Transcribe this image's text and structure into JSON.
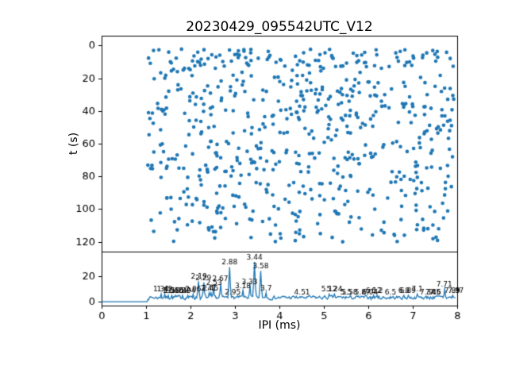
{
  "title": "20230429_095542UTC_V12",
  "colors": {
    "accent": "#1f77b4",
    "axis": "#000000",
    "text": "#000000",
    "background": "#ffffff"
  },
  "chart_data": [
    {
      "type": "scatter",
      "panel": "top",
      "title": "20230429_095542UTC_V12",
      "xlabel": "",
      "ylabel": "t (s)",
      "xlim": [
        0,
        8
      ],
      "ylim": [
        -6,
        126
      ],
      "y_inverted": true,
      "yticks": [
        0,
        20,
        40,
        60,
        80,
        100,
        120
      ],
      "grid": false,
      "marker_color": "#1f77b4",
      "marker_radius_px": 2.3,
      "points_estimated": true,
      "n_points": 650,
      "x_range": [
        1.03,
        7.95
      ],
      "seed": 42,
      "bands": [
        {
          "y_from": 2,
          "y_to": 14,
          "n": 110
        },
        {
          "y_from": 14,
          "y_to": 30,
          "n": 80
        },
        {
          "y_from": 30,
          "y_to": 46,
          "n": 110
        },
        {
          "y_from": 46,
          "y_to": 58,
          "n": 55
        },
        {
          "y_from": 58,
          "y_to": 76,
          "n": 105
        },
        {
          "y_from": 76,
          "y_to": 92,
          "n": 75
        },
        {
          "y_from": 92,
          "y_to": 120,
          "n": 115
        }
      ]
    },
    {
      "type": "line",
      "panel": "bottom",
      "xlabel": "IPI (ms)",
      "ylabel": "",
      "xlim": [
        0,
        8
      ],
      "ylim": [
        -3,
        39
      ],
      "xticks": [
        0,
        1,
        2,
        3,
        4,
        5,
        6,
        7,
        8
      ],
      "yticks": [
        0,
        20
      ],
      "grid": false,
      "line_color": "#1f77b4",
      "flat_zero_until_x": 1.02,
      "noise": {
        "min": 1.0,
        "max": 5.5,
        "step": 0.02,
        "seed": 7,
        "smooth": 0.55
      },
      "peaks": [
        {
          "x": 1.34,
          "y": 6,
          "label": "1.34"
        },
        {
          "x": 1.42,
          "y": 6,
          "label": "1.42"
        },
        {
          "x": 1.5,
          "y": 5,
          "label": "1.5"
        },
        {
          "x": 1.58,
          "y": 5,
          "label": "1.58"
        },
        {
          "x": 1.66,
          "y": 5,
          "label": "1.66"
        },
        {
          "x": 1.74,
          "y": 5,
          "label": "1.74"
        },
        {
          "x": 1.82,
          "y": 5,
          "label": "1.82"
        },
        {
          "x": 1.94,
          "y": 5,
          "label": "1.94"
        },
        {
          "x": 2.06,
          "y": 6,
          "label": "2.06"
        },
        {
          "x": 2.19,
          "y": 16,
          "label": "2.19"
        },
        {
          "x": 2.29,
          "y": 15,
          "label": "2.29"
        },
        {
          "x": 2.41,
          "y": 7,
          "label": "2.41"
        },
        {
          "x": 2.45,
          "y": 7,
          "label": "2.45"
        },
        {
          "x": 2.53,
          "y": 11,
          "label": "2.53"
        },
        {
          "x": 2.67,
          "y": 14,
          "label": "2.67"
        },
        {
          "x": 2.88,
          "y": 27,
          "label": "2.88"
        },
        {
          "x": 2.95,
          "y": 4,
          "label": "2.95"
        },
        {
          "x": 3.18,
          "y": 9,
          "label": "3.18"
        },
        {
          "x": 3.33,
          "y": 12,
          "label": "3.33"
        },
        {
          "x": 3.44,
          "y": 31,
          "label": "3.44"
        },
        {
          "x": 3.58,
          "y": 24,
          "label": "3.58"
        },
        {
          "x": 3.7,
          "y": 7,
          "label": "3.7"
        },
        {
          "x": 4.51,
          "y": 4,
          "label": "4.51"
        },
        {
          "x": 5.12,
          "y": 6,
          "label": "5.12"
        },
        {
          "x": 5.24,
          "y": 6,
          "label": "5.24"
        },
        {
          "x": 5.5,
          "y": 4,
          "label": "5.5"
        },
        {
          "x": 5.58,
          "y": 4,
          "label": "5.58"
        },
        {
          "x": 5.87,
          "y": 4,
          "label": "5.87"
        },
        {
          "x": 6.04,
          "y": 4,
          "label": "6.04"
        },
        {
          "x": 6.12,
          "y": 5,
          "label": "6.12"
        },
        {
          "x": 6.2,
          "y": 5,
          "label": "6.2"
        },
        {
          "x": 6.5,
          "y": 4,
          "label": "6.5"
        },
        {
          "x": 6.8,
          "y": 5,
          "label": "6.8"
        },
        {
          "x": 6.89,
          "y": 5,
          "label": "6.89"
        },
        {
          "x": 7.1,
          "y": 6,
          "label": "7.1"
        },
        {
          "x": 7.34,
          "y": 4,
          "label": "7.34"
        },
        {
          "x": 7.46,
          "y": 4,
          "label": "7.46"
        },
        {
          "x": 7.5,
          "y": 4,
          "label": "7.5"
        },
        {
          "x": 7.71,
          "y": 10,
          "label": "7.71"
        },
        {
          "x": 7.89,
          "y": 5,
          "label": "7.89"
        },
        {
          "x": 7.97,
          "y": 5,
          "label": "7.97"
        }
      ]
    }
  ]
}
